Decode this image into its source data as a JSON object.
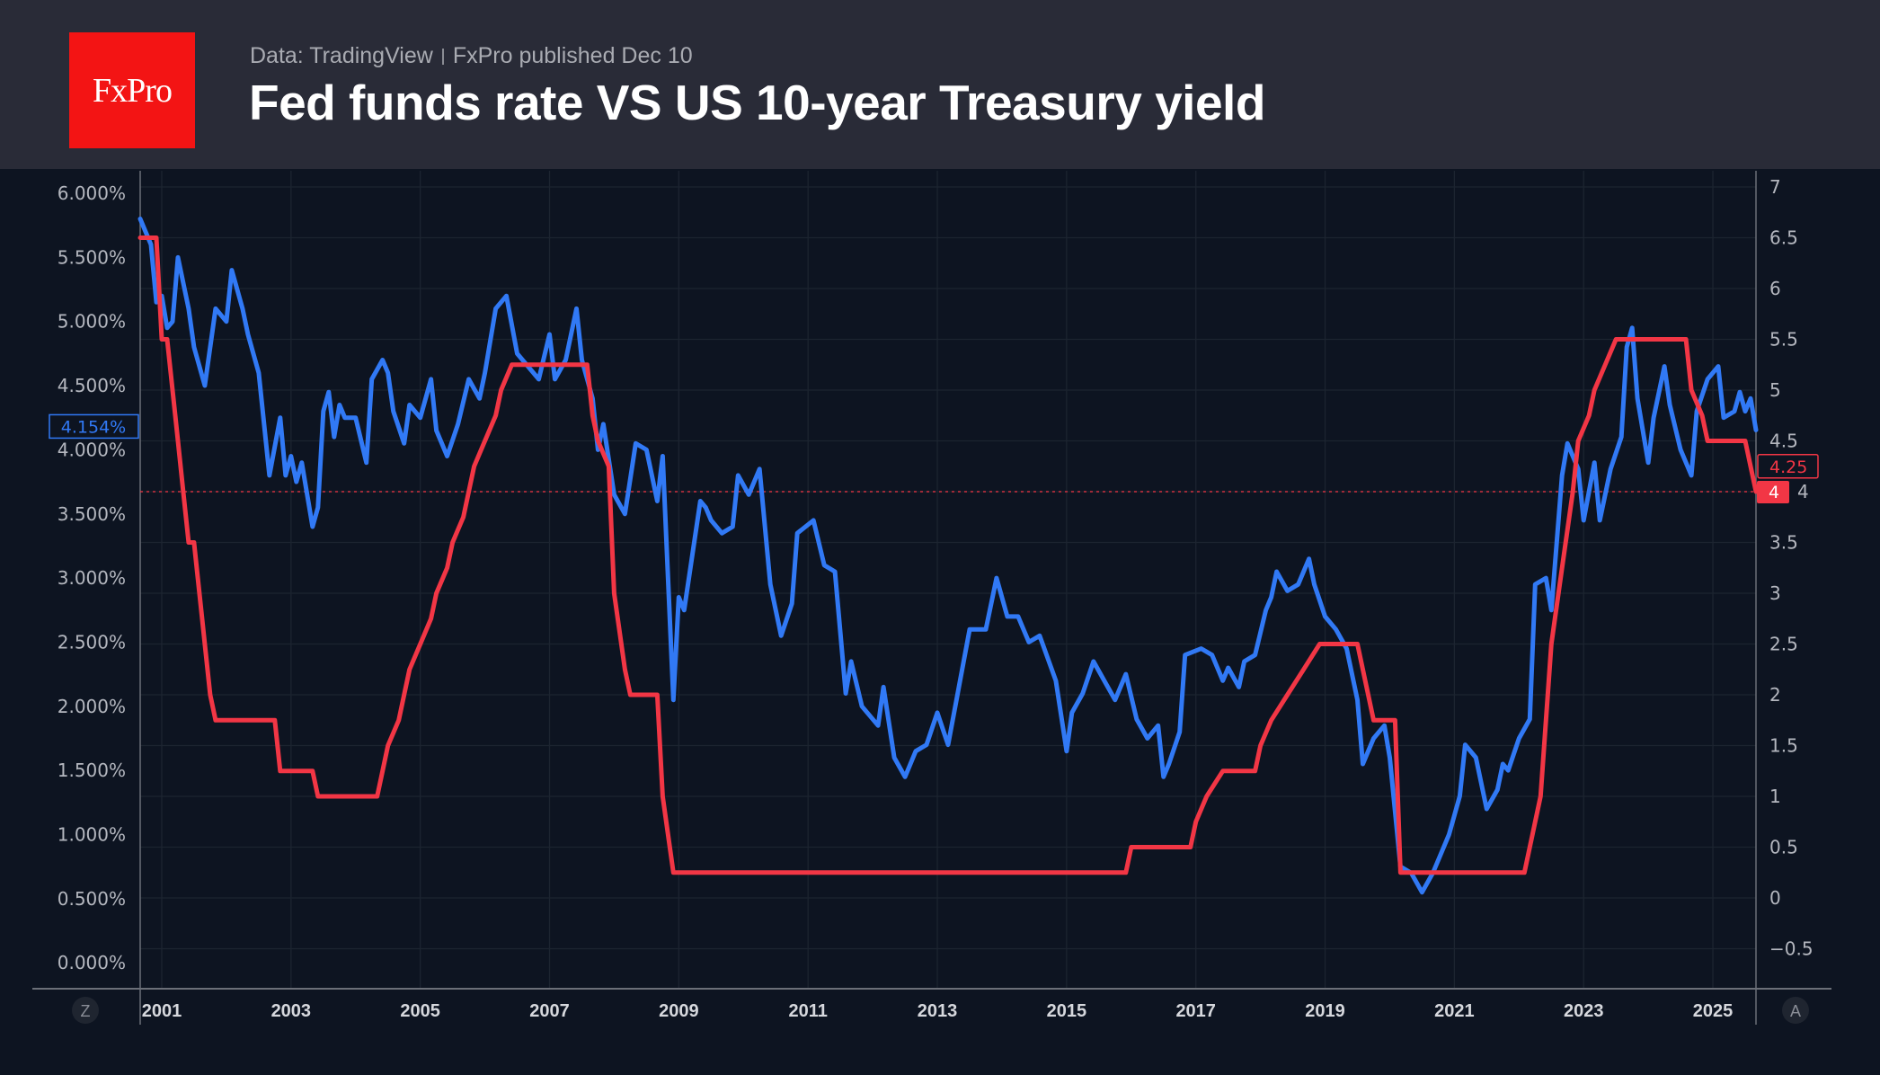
{
  "header": {
    "logo_text": "FxPro",
    "source": "Data: TradingView",
    "published": "FxPro published Dec 10",
    "title": "Fed funds rate VS US 10-year Treasury yield"
  },
  "controls": {
    "left_button": "Z",
    "right_button": "A"
  },
  "chart_data": {
    "type": "line",
    "title": "Fed funds rate VS US 10-year Treasury yield",
    "xlim": [
      "2000-09",
      "2025-09"
    ],
    "x_ticks": [
      "2001",
      "2003",
      "2005",
      "2007",
      "2009",
      "2011",
      "2013",
      "2015",
      "2017",
      "2019",
      "2021",
      "2023",
      "2025"
    ],
    "left_axis": {
      "ylim": [
        -0.25,
        6.2
      ],
      "ticks": [
        "0.000%",
        "0.500%",
        "1.000%",
        "1.500%",
        "2.000%",
        "2.500%",
        "3.000%",
        "3.500%",
        "4.000%",
        "4.500%",
        "5.000%",
        "5.500%",
        "6.000%"
      ],
      "tick_values": [
        0,
        0.5,
        1,
        1.5,
        2,
        2.5,
        3,
        3.5,
        4,
        4.5,
        5,
        5.5,
        6
      ]
    },
    "right_axis": {
      "ticks": [
        "−0.5",
        "0",
        "0.5",
        "1",
        "1.5",
        "2",
        "2.5",
        "3",
        "3.5",
        "4",
        "4.5",
        "5",
        "5.5",
        "6",
        "6.5",
        "7"
      ],
      "tick_values": [
        -0.5,
        0,
        0.5,
        1,
        1.5,
        2,
        2.5,
        3,
        3.5,
        4,
        4.5,
        5,
        5.5,
        6,
        6.5,
        7
      ]
    },
    "grid": true,
    "series": [
      {
        "axis": "left",
        "color": "#3179f5",
        "last_label": "4.154%",
        "points": [
          [
            "2000-09",
            5.8
          ],
          [
            "2000-11",
            5.6
          ],
          [
            "2000-12",
            5.15
          ],
          [
            "2001-01",
            5.2
          ],
          [
            "2001-02",
            4.95
          ],
          [
            "2001-03",
            5.0
          ],
          [
            "2001-04",
            5.5
          ],
          [
            "2001-06",
            5.1
          ],
          [
            "2001-07",
            4.8
          ],
          [
            "2001-09",
            4.5
          ],
          [
            "2001-11",
            5.1
          ],
          [
            "2002-01",
            5.0
          ],
          [
            "2002-02",
            5.4
          ],
          [
            "2002-04",
            5.1
          ],
          [
            "2002-05",
            4.9
          ],
          [
            "2002-07",
            4.6
          ],
          [
            "2002-09",
            3.8
          ],
          [
            "2002-11",
            4.25
          ],
          [
            "2002-12",
            3.8
          ],
          [
            "2003-01",
            3.95
          ],
          [
            "2003-02",
            3.75
          ],
          [
            "2003-03",
            3.9
          ],
          [
            "2003-05",
            3.4
          ],
          [
            "2003-06",
            3.55
          ],
          [
            "2003-07",
            4.3
          ],
          [
            "2003-08",
            4.45
          ],
          [
            "2003-09",
            4.1
          ],
          [
            "2003-10",
            4.35
          ],
          [
            "2003-11",
            4.25
          ],
          [
            "2004-01",
            4.25
          ],
          [
            "2004-03",
            3.9
          ],
          [
            "2004-04",
            4.55
          ],
          [
            "2004-06",
            4.7
          ],
          [
            "2004-07",
            4.6
          ],
          [
            "2004-08",
            4.3
          ],
          [
            "2004-10",
            4.05
          ],
          [
            "2004-11",
            4.35
          ],
          [
            "2005-01",
            4.25
          ],
          [
            "2005-03",
            4.55
          ],
          [
            "2005-04",
            4.15
          ],
          [
            "2005-06",
            3.95
          ],
          [
            "2005-08",
            4.2
          ],
          [
            "2005-10",
            4.55
          ],
          [
            "2005-12",
            4.4
          ],
          [
            "2006-01",
            4.6
          ],
          [
            "2006-03",
            5.1
          ],
          [
            "2006-05",
            5.2
          ],
          [
            "2006-07",
            4.75
          ],
          [
            "2006-09",
            4.65
          ],
          [
            "2006-11",
            4.55
          ],
          [
            "2007-01",
            4.9
          ],
          [
            "2007-02",
            4.55
          ],
          [
            "2007-04",
            4.7
          ],
          [
            "2007-06",
            5.1
          ],
          [
            "2007-07",
            4.7
          ],
          [
            "2007-09",
            4.4
          ],
          [
            "2007-10",
            4.0
          ],
          [
            "2007-11",
            4.2
          ],
          [
            "2008-01",
            3.65
          ],
          [
            "2008-03",
            3.5
          ],
          [
            "2008-05",
            4.05
          ],
          [
            "2008-07",
            4.0
          ],
          [
            "2008-09",
            3.6
          ],
          [
            "2008-10",
            3.95
          ],
          [
            "2008-12",
            2.05
          ],
          [
            "2009-01",
            2.85
          ],
          [
            "2009-02",
            2.75
          ],
          [
            "2009-05",
            3.6
          ],
          [
            "2009-06",
            3.55
          ],
          [
            "2009-07",
            3.45
          ],
          [
            "2009-09",
            3.35
          ],
          [
            "2009-11",
            3.4
          ],
          [
            "2009-12",
            3.8
          ],
          [
            "2010-02",
            3.65
          ],
          [
            "2010-04",
            3.85
          ],
          [
            "2010-06",
            2.95
          ],
          [
            "2010-08",
            2.55
          ],
          [
            "2010-10",
            2.8
          ],
          [
            "2010-11",
            3.35
          ],
          [
            "2011-02",
            3.45
          ],
          [
            "2011-04",
            3.1
          ],
          [
            "2011-06",
            3.05
          ],
          [
            "2011-08",
            2.1
          ],
          [
            "2011-09",
            2.35
          ],
          [
            "2011-11",
            2.0
          ],
          [
            "2012-02",
            1.85
          ],
          [
            "2012-03",
            2.15
          ],
          [
            "2012-05",
            1.6
          ],
          [
            "2012-07",
            1.45
          ],
          [
            "2012-09",
            1.65
          ],
          [
            "2012-11",
            1.7
          ],
          [
            "2013-01",
            1.95
          ],
          [
            "2013-03",
            1.7
          ],
          [
            "2013-05",
            2.15
          ],
          [
            "2013-07",
            2.6
          ],
          [
            "2013-10",
            2.6
          ],
          [
            "2013-12",
            3.0
          ],
          [
            "2014-02",
            2.7
          ],
          [
            "2014-04",
            2.7
          ],
          [
            "2014-06",
            2.5
          ],
          [
            "2014-08",
            2.55
          ],
          [
            "2014-11",
            2.2
          ],
          [
            "2015-01",
            1.65
          ],
          [
            "2015-02",
            1.95
          ],
          [
            "2015-04",
            2.1
          ],
          [
            "2015-06",
            2.35
          ],
          [
            "2015-08",
            2.2
          ],
          [
            "2015-10",
            2.05
          ],
          [
            "2015-12",
            2.25
          ],
          [
            "2016-02",
            1.9
          ],
          [
            "2016-04",
            1.75
          ],
          [
            "2016-06",
            1.85
          ],
          [
            "2016-07",
            1.45
          ],
          [
            "2016-08",
            1.55
          ],
          [
            "2016-10",
            1.8
          ],
          [
            "2016-11",
            2.4
          ],
          [
            "2017-02",
            2.45
          ],
          [
            "2017-04",
            2.4
          ],
          [
            "2017-06",
            2.2
          ],
          [
            "2017-07",
            2.3
          ],
          [
            "2017-09",
            2.15
          ],
          [
            "2017-10",
            2.35
          ],
          [
            "2017-12",
            2.4
          ],
          [
            "2018-02",
            2.75
          ],
          [
            "2018-03",
            2.85
          ],
          [
            "2018-04",
            3.05
          ],
          [
            "2018-06",
            2.9
          ],
          [
            "2018-08",
            2.95
          ],
          [
            "2018-10",
            3.15
          ],
          [
            "2018-11",
            2.95
          ],
          [
            "2019-01",
            2.7
          ],
          [
            "2019-03",
            2.6
          ],
          [
            "2019-05",
            2.45
          ],
          [
            "2019-07",
            2.05
          ],
          [
            "2019-08",
            1.55
          ],
          [
            "2019-10",
            1.75
          ],
          [
            "2019-12",
            1.85
          ],
          [
            "2020-01",
            1.6
          ],
          [
            "2020-03",
            0.75
          ],
          [
            "2020-05",
            0.7
          ],
          [
            "2020-07",
            0.55
          ],
          [
            "2020-09",
            0.7
          ],
          [
            "2020-11",
            0.9
          ],
          [
            "2020-12",
            1.0
          ],
          [
            "2021-02",
            1.3
          ],
          [
            "2021-03",
            1.7
          ],
          [
            "2021-05",
            1.6
          ],
          [
            "2021-07",
            1.2
          ],
          [
            "2021-09",
            1.35
          ],
          [
            "2021-10",
            1.55
          ],
          [
            "2021-11",
            1.5
          ],
          [
            "2022-01",
            1.75
          ],
          [
            "2022-03",
            1.9
          ],
          [
            "2022-04",
            2.95
          ],
          [
            "2022-06",
            3.0
          ],
          [
            "2022-07",
            2.75
          ],
          [
            "2022-09",
            3.8
          ],
          [
            "2022-10",
            4.05
          ],
          [
            "2022-12",
            3.85
          ],
          [
            "2023-01",
            3.45
          ],
          [
            "2023-03",
            3.9
          ],
          [
            "2023-04",
            3.45
          ],
          [
            "2023-06",
            3.85
          ],
          [
            "2023-08",
            4.1
          ],
          [
            "2023-09",
            4.8
          ],
          [
            "2023-10",
            4.95
          ],
          [
            "2023-11",
            4.4
          ],
          [
            "2024-01",
            3.9
          ],
          [
            "2024-02",
            4.25
          ],
          [
            "2024-04",
            4.65
          ],
          [
            "2024-05",
            4.35
          ],
          [
            "2024-07",
            4.0
          ],
          [
            "2024-09",
            3.8
          ],
          [
            "2024-10",
            4.3
          ],
          [
            "2024-12",
            4.55
          ],
          [
            "2025-02",
            4.65
          ],
          [
            "2025-03",
            4.25
          ],
          [
            "2025-05",
            4.3
          ],
          [
            "2025-06",
            4.45
          ],
          [
            "2025-07",
            4.3
          ],
          [
            "2025-08",
            4.4
          ],
          [
            "2025-09",
            4.154
          ]
        ]
      },
      {
        "axis": "right",
        "color": "#f23645",
        "last_label": "4.25",
        "current_label": "4",
        "points": [
          [
            "2000-09",
            6.5
          ],
          [
            "2000-12",
            6.5
          ],
          [
            "2001-01",
            5.5
          ],
          [
            "2001-02",
            5.5
          ],
          [
            "2001-03",
            5.0
          ],
          [
            "2001-04",
            4.5
          ],
          [
            "2001-05",
            4.0
          ],
          [
            "2001-06",
            3.5
          ],
          [
            "2001-07",
            3.5
          ],
          [
            "2001-08",
            3.0
          ],
          [
            "2001-09",
            2.5
          ],
          [
            "2001-10",
            2.0
          ],
          [
            "2001-11",
            1.75
          ],
          [
            "2002-10",
            1.75
          ],
          [
            "2002-11",
            1.25
          ],
          [
            "2003-05",
            1.25
          ],
          [
            "2003-06",
            1.0
          ],
          [
            "2004-05",
            1.0
          ],
          [
            "2004-06",
            1.25
          ],
          [
            "2004-07",
            1.5
          ],
          [
            "2004-09",
            1.75
          ],
          [
            "2004-10",
            2.0
          ],
          [
            "2004-11",
            2.25
          ],
          [
            "2005-01",
            2.5
          ],
          [
            "2005-03",
            2.75
          ],
          [
            "2005-04",
            3.0
          ],
          [
            "2005-06",
            3.25
          ],
          [
            "2005-07",
            3.5
          ],
          [
            "2005-09",
            3.75
          ],
          [
            "2005-10",
            4.0
          ],
          [
            "2005-11",
            4.25
          ],
          [
            "2006-01",
            4.5
          ],
          [
            "2006-03",
            4.75
          ],
          [
            "2006-04",
            5.0
          ],
          [
            "2006-06",
            5.25
          ],
          [
            "2007-08",
            5.25
          ],
          [
            "2007-09",
            4.75
          ],
          [
            "2007-10",
            4.5
          ],
          [
            "2007-12",
            4.25
          ],
          [
            "2008-01",
            3.0
          ],
          [
            "2008-03",
            2.25
          ],
          [
            "2008-04",
            2.0
          ],
          [
            "2008-09",
            2.0
          ],
          [
            "2008-10",
            1.0
          ],
          [
            "2008-12",
            0.25
          ],
          [
            "2015-12",
            0.25
          ],
          [
            "2016-01",
            0.5
          ],
          [
            "2016-12",
            0.5
          ],
          [
            "2017-01",
            0.75
          ],
          [
            "2017-03",
            1.0
          ],
          [
            "2017-06",
            1.25
          ],
          [
            "2017-12",
            1.25
          ],
          [
            "2018-01",
            1.5
          ],
          [
            "2018-03",
            1.75
          ],
          [
            "2018-06",
            2.0
          ],
          [
            "2018-09",
            2.25
          ],
          [
            "2018-12",
            2.5
          ],
          [
            "2019-07",
            2.5
          ],
          [
            "2019-08",
            2.25
          ],
          [
            "2019-09",
            2.0
          ],
          [
            "2019-10",
            1.75
          ],
          [
            "2020-02",
            1.75
          ],
          [
            "2020-03",
            0.25
          ],
          [
            "2022-02",
            0.25
          ],
          [
            "2022-03",
            0.5
          ],
          [
            "2022-05",
            1.0
          ],
          [
            "2022-06",
            1.75
          ],
          [
            "2022-07",
            2.5
          ],
          [
            "2022-09",
            3.25
          ],
          [
            "2022-11",
            4.0
          ],
          [
            "2022-12",
            4.5
          ],
          [
            "2023-02",
            4.75
          ],
          [
            "2023-03",
            5.0
          ],
          [
            "2023-05",
            5.25
          ],
          [
            "2023-07",
            5.5
          ],
          [
            "2024-08",
            5.5
          ],
          [
            "2024-09",
            5.0
          ],
          [
            "2024-11",
            4.75
          ],
          [
            "2024-12",
            4.5
          ],
          [
            "2025-07",
            4.5
          ],
          [
            "2025-08",
            4.25
          ],
          [
            "2025-09",
            4.0
          ]
        ]
      }
    ]
  }
}
